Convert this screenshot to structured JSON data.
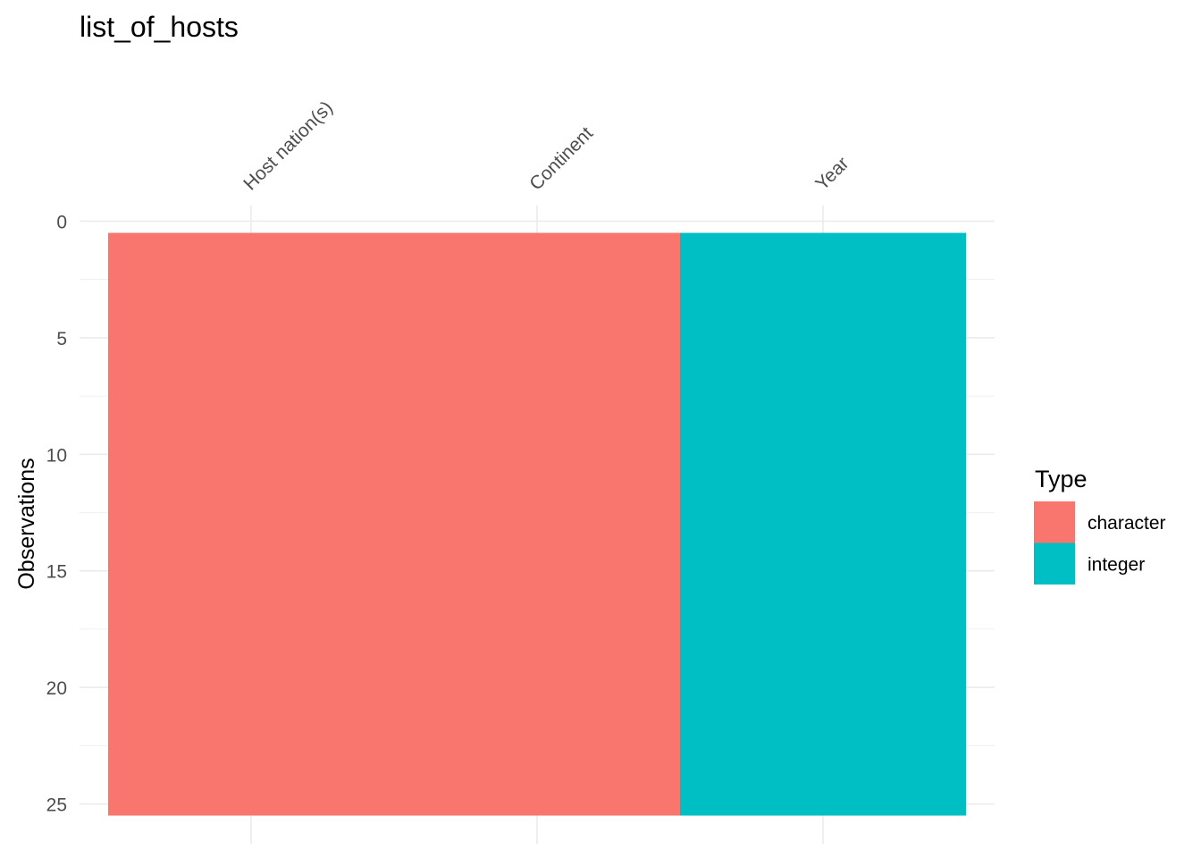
{
  "chart_data": {
    "type": "heatmap",
    "title": "list_of_hosts",
    "xlabel": "",
    "ylabel": "Observations",
    "columns": [
      "Host nation(s)",
      "Continent",
      "Year"
    ],
    "column_types": [
      "character",
      "character",
      "integer"
    ],
    "observations": 25,
    "y_ticks": [
      0,
      5,
      10,
      15,
      20,
      25
    ],
    "y_reversed": true,
    "legend": {
      "title": "Type",
      "position": "right",
      "items": [
        {
          "label": "character",
          "color": "#F8766D"
        },
        {
          "label": "integer",
          "color": "#00BFC4"
        }
      ]
    },
    "grid": true
  }
}
